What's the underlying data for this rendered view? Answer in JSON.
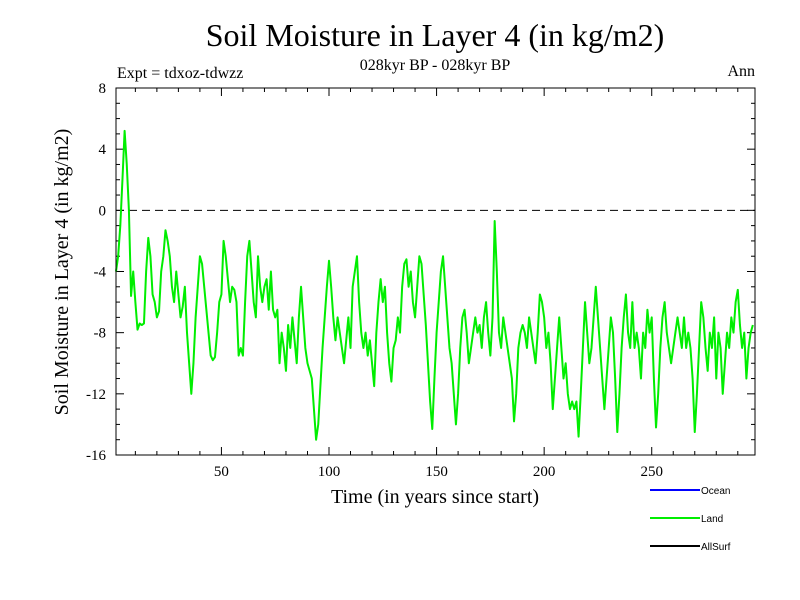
{
  "chart_data": {
    "type": "line",
    "title": "Soil Moisture in Layer 4 (in kg/m2)",
    "subtitle": "028kyr BP - 028kyr BP",
    "expt_label": "Expt = tdxoz-tdwzz",
    "period_label": "Ann",
    "xlabel": "Time (in years since start)",
    "ylabel": "Soil Moisture in Layer 4 (in kg/m2)",
    "xlim": [
      1,
      298
    ],
    "ylim": [
      -16,
      8
    ],
    "x_ticks": [
      50,
      100,
      150,
      200,
      250
    ],
    "y_ticks": [
      8,
      4,
      0,
      -4,
      -8,
      -12,
      -16
    ],
    "zero_line": 0,
    "colors": {
      "Ocean": "#0000ff",
      "Land": "#00ee00",
      "AllSurf": "#000000"
    },
    "legend": [
      "Ocean",
      "Land",
      "AllSurf"
    ],
    "series": [
      {
        "name": "Land",
        "x_start": 1,
        "x_step": 1,
        "values": [
          -4.0,
          -3.0,
          -1.0,
          2.0,
          5.2,
          3.0,
          0.0,
          -5.6,
          -4.0,
          -6.0,
          -7.8,
          -7.4,
          -7.5,
          -7.4,
          -4.0,
          -1.8,
          -3.0,
          -5.5,
          -6.0,
          -7.0,
          -6.6,
          -4.0,
          -3.0,
          -1.3,
          -2.0,
          -3.0,
          -5.0,
          -6.0,
          -4.0,
          -5.5,
          -7.0,
          -6.3,
          -5.0,
          -8.0,
          -10.0,
          -12.0,
          -10.0,
          -7.0,
          -5.0,
          -3.0,
          -3.5,
          -5.0,
          -6.5,
          -8.0,
          -9.5,
          -9.8,
          -9.6,
          -8.0,
          -6.0,
          -5.5,
          -2.0,
          -3.0,
          -4.5,
          -6.0,
          -5.0,
          -5.2,
          -6.0,
          -9.5,
          -9.0,
          -9.5,
          -6.0,
          -3.0,
          -2.0,
          -4.0,
          -6.0,
          -7.0,
          -3.0,
          -5.0,
          -6.0,
          -5.0,
          -4.5,
          -6.5,
          -4.0,
          -6.5,
          -7.0,
          -6.5,
          -10.0,
          -8.0,
          -9.0,
          -10.5,
          -7.5,
          -9.0,
          -7.0,
          -8.5,
          -10.0,
          -7.0,
          -5.0,
          -7.0,
          -9.0,
          -10.0,
          -10.5,
          -11.0,
          -13.0,
          -15.0,
          -14.0,
          -11.5,
          -9.0,
          -7.0,
          -5.0,
          -3.3,
          -5.0,
          -7.0,
          -8.5,
          -7.0,
          -8.0,
          -9.0,
          -10.0,
          -8.5,
          -7.0,
          -9.0,
          -5.0,
          -4.0,
          -3.0,
          -6.0,
          -8.0,
          -9.0,
          -8.0,
          -9.5,
          -8.5,
          -10.0,
          -11.5,
          -8.0,
          -6.0,
          -4.5,
          -6.0,
          -5.0,
          -8.0,
          -10.0,
          -11.2,
          -9.0,
          -8.5,
          -7.0,
          -8.0,
          -5.0,
          -3.5,
          -3.2,
          -5.0,
          -4.0,
          -6.0,
          -7.0,
          -5.0,
          -3.0,
          -3.5,
          -5.5,
          -7.5,
          -10.0,
          -12.5,
          -14.3,
          -11.0,
          -8.0,
          -6.0,
          -4.0,
          -3.0,
          -5.0,
          -7.0,
          -9.0,
          -10.0,
          -12.0,
          -14.0,
          -12.0,
          -9.0,
          -7.0,
          -6.5,
          -8.0,
          -10.0,
          -9.0,
          -8.0,
          -7.0,
          -8.0,
          -7.5,
          -9.0,
          -7.0,
          -6.0,
          -8.0,
          -9.5,
          -7.0,
          -0.7,
          -4.0,
          -8.0,
          -9.0,
          -7.0,
          -8.0,
          -9.0,
          -10.0,
          -11.0,
          -13.8,
          -12.0,
          -9.0,
          -8.0,
          -7.5,
          -8.0,
          -9.0,
          -7.0,
          -8.0,
          -9.0,
          -10.0,
          -8.0,
          -5.5,
          -6.0,
          -7.0,
          -9.0,
          -8.0,
          -10.0,
          -13.0,
          -11.0,
          -9.0,
          -7.0,
          -9.0,
          -11.0,
          -10.0,
          -12.0,
          -13.0,
          -12.5,
          -13.0,
          -12.5,
          -14.8,
          -12.0,
          -9.0,
          -6.0,
          -8.0,
          -10.0,
          -9.0,
          -7.0,
          -5.0,
          -7.0,
          -9.0,
          -11.0,
          -13.0,
          -11.0,
          -9.0,
          -7.0,
          -8.0,
          -11.0,
          -14.5,
          -12.0,
          -9.0,
          -7.0,
          -5.5,
          -8.0,
          -9.0,
          -6.0,
          -9.0,
          -8.0,
          -9.0,
          -11.0,
          -8.0,
          -9.0,
          -6.5,
          -8.0,
          -7.0,
          -11.0,
          -14.2,
          -12.0,
          -9.0,
          -7.0,
          -6.0,
          -8.0,
          -9.0,
          -10.0,
          -9.0,
          -8.0,
          -7.0,
          -8.0,
          -9.0,
          -7.0,
          -9.0,
          -8.0,
          -9.0,
          -11.0,
          -14.5,
          -12.0,
          -9.0,
          -6.0,
          -7.0,
          -9.0,
          -10.5,
          -8.0,
          -9.0,
          -7.0,
          -11.0,
          -8.0,
          -9.0,
          -12.0,
          -10.0,
          -8.0,
          -9.0,
          -7.0,
          -8.0,
          -6.0,
          -5.2,
          -7.5,
          -9.0,
          -8.0,
          -11.0,
          -9.0,
          -8.0,
          -7.5
        ]
      }
    ]
  }
}
